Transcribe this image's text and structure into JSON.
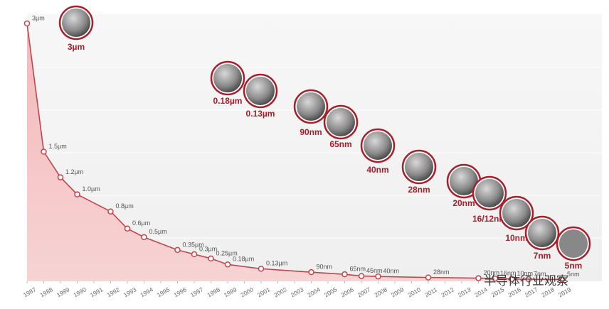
{
  "chart_data": {
    "type": "line",
    "x": [
      1987,
      1988,
      1989,
      1990,
      1992,
      1993,
      1994,
      1996,
      1997,
      1998,
      1999,
      2001,
      2004,
      2006,
      2007,
      2008,
      2011,
      2014,
      2015,
      2016,
      2017,
      2019
    ],
    "values": [
      3000,
      1500,
      1200,
      1000,
      800,
      600,
      500,
      350,
      300,
      250,
      180,
      130,
      90,
      65,
      45,
      40,
      28,
      20,
      16,
      10,
      7,
      5
    ],
    "value_labels": [
      "3µm",
      "1.5µm",
      "1.2µm",
      "1.0µm",
      "0.8µm",
      "0.6µm",
      "0.5µm",
      "0.35µm",
      "0.3µm",
      "0.25µm",
      "0.18µm",
      "0.13µm",
      "90nm",
      "65nm",
      "45nm",
      "40nm",
      "28nm",
      "20nm",
      "16nm",
      "10nm",
      "7nm",
      "5nm"
    ],
    "color": "#c0454d",
    "xlim": [
      1987,
      2019
    ],
    "xticks": [
      1987,
      1988,
      1989,
      1990,
      1991,
      1992,
      1993,
      1994,
      1995,
      1996,
      1997,
      1998,
      1999,
      2000,
      2001,
      2002,
      2003,
      2004,
      2005,
      2006,
      2007,
      2008,
      2009,
      2010,
      2011,
      2012,
      2013,
      2014,
      2015,
      2016,
      2017,
      2018,
      2019
    ],
    "ylim": [
      0,
      3000
    ],
    "annotations": [
      "3µm",
      "0.18µm",
      "0.13µm",
      "90nm",
      "65nm",
      "40nm",
      "28nm",
      "20nm",
      "16/12nm",
      "10nm",
      "7nm",
      "5nm"
    ],
    "watermark": "半导体行业观察"
  }
}
